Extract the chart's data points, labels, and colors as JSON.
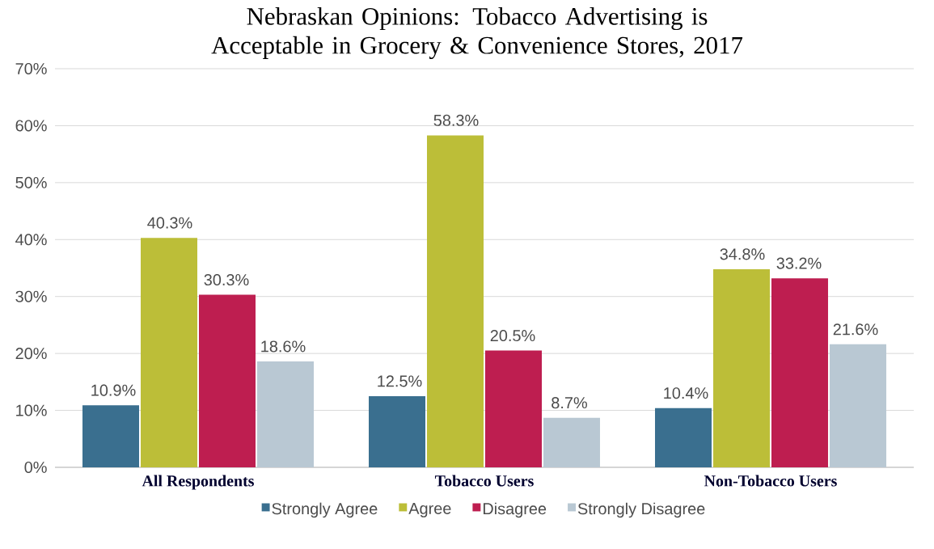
{
  "chart_data": {
    "type": "bar",
    "title": "Nebraskan Opinions: Tobacco Advertising is Acceptable in Grocery & Convenience Stores, 2017",
    "categories": [
      "All Respondents",
      "Tobacco Users",
      "Non-Tobacco Users"
    ],
    "series": [
      {
        "name": "Strongly Agree",
        "color": "#3a6f8f",
        "values": [
          10.9,
          12.5,
          10.4
        ],
        "value_labels": [
          "10.9%",
          "12.5%",
          "10.4%"
        ]
      },
      {
        "name": "Agree",
        "color": "#bcbe38",
        "values": [
          40.3,
          58.3,
          34.8
        ],
        "value_labels": [
          "40.3%",
          "58.3%",
          "34.8%"
        ]
      },
      {
        "name": "Disagree",
        "color": "#be1e50",
        "values": [
          30.3,
          20.5,
          33.2
        ],
        "value_labels": [
          "30.3%",
          "20.5%",
          "33.2%"
        ]
      },
      {
        "name": "Strongly Disagree",
        "color": "#b9c8d3",
        "values": [
          18.6,
          8.7,
          21.6
        ],
        "value_labels": [
          "18.6%",
          "8.7%",
          "21.6%"
        ]
      }
    ],
    "ylim": [
      0,
      70
    ],
    "yticks": [
      {
        "value": 0,
        "label": "0%"
      },
      {
        "value": 10,
        "label": "10%"
      },
      {
        "value": 20,
        "label": "20%"
      },
      {
        "value": 30,
        "label": "30%"
      },
      {
        "value": 40,
        "label": "40%"
      },
      {
        "value": 50,
        "label": "50%"
      },
      {
        "value": 60,
        "label": "60%"
      },
      {
        "value": 70,
        "label": "70%"
      }
    ],
    "grid": "y",
    "legend": "bottom"
  }
}
